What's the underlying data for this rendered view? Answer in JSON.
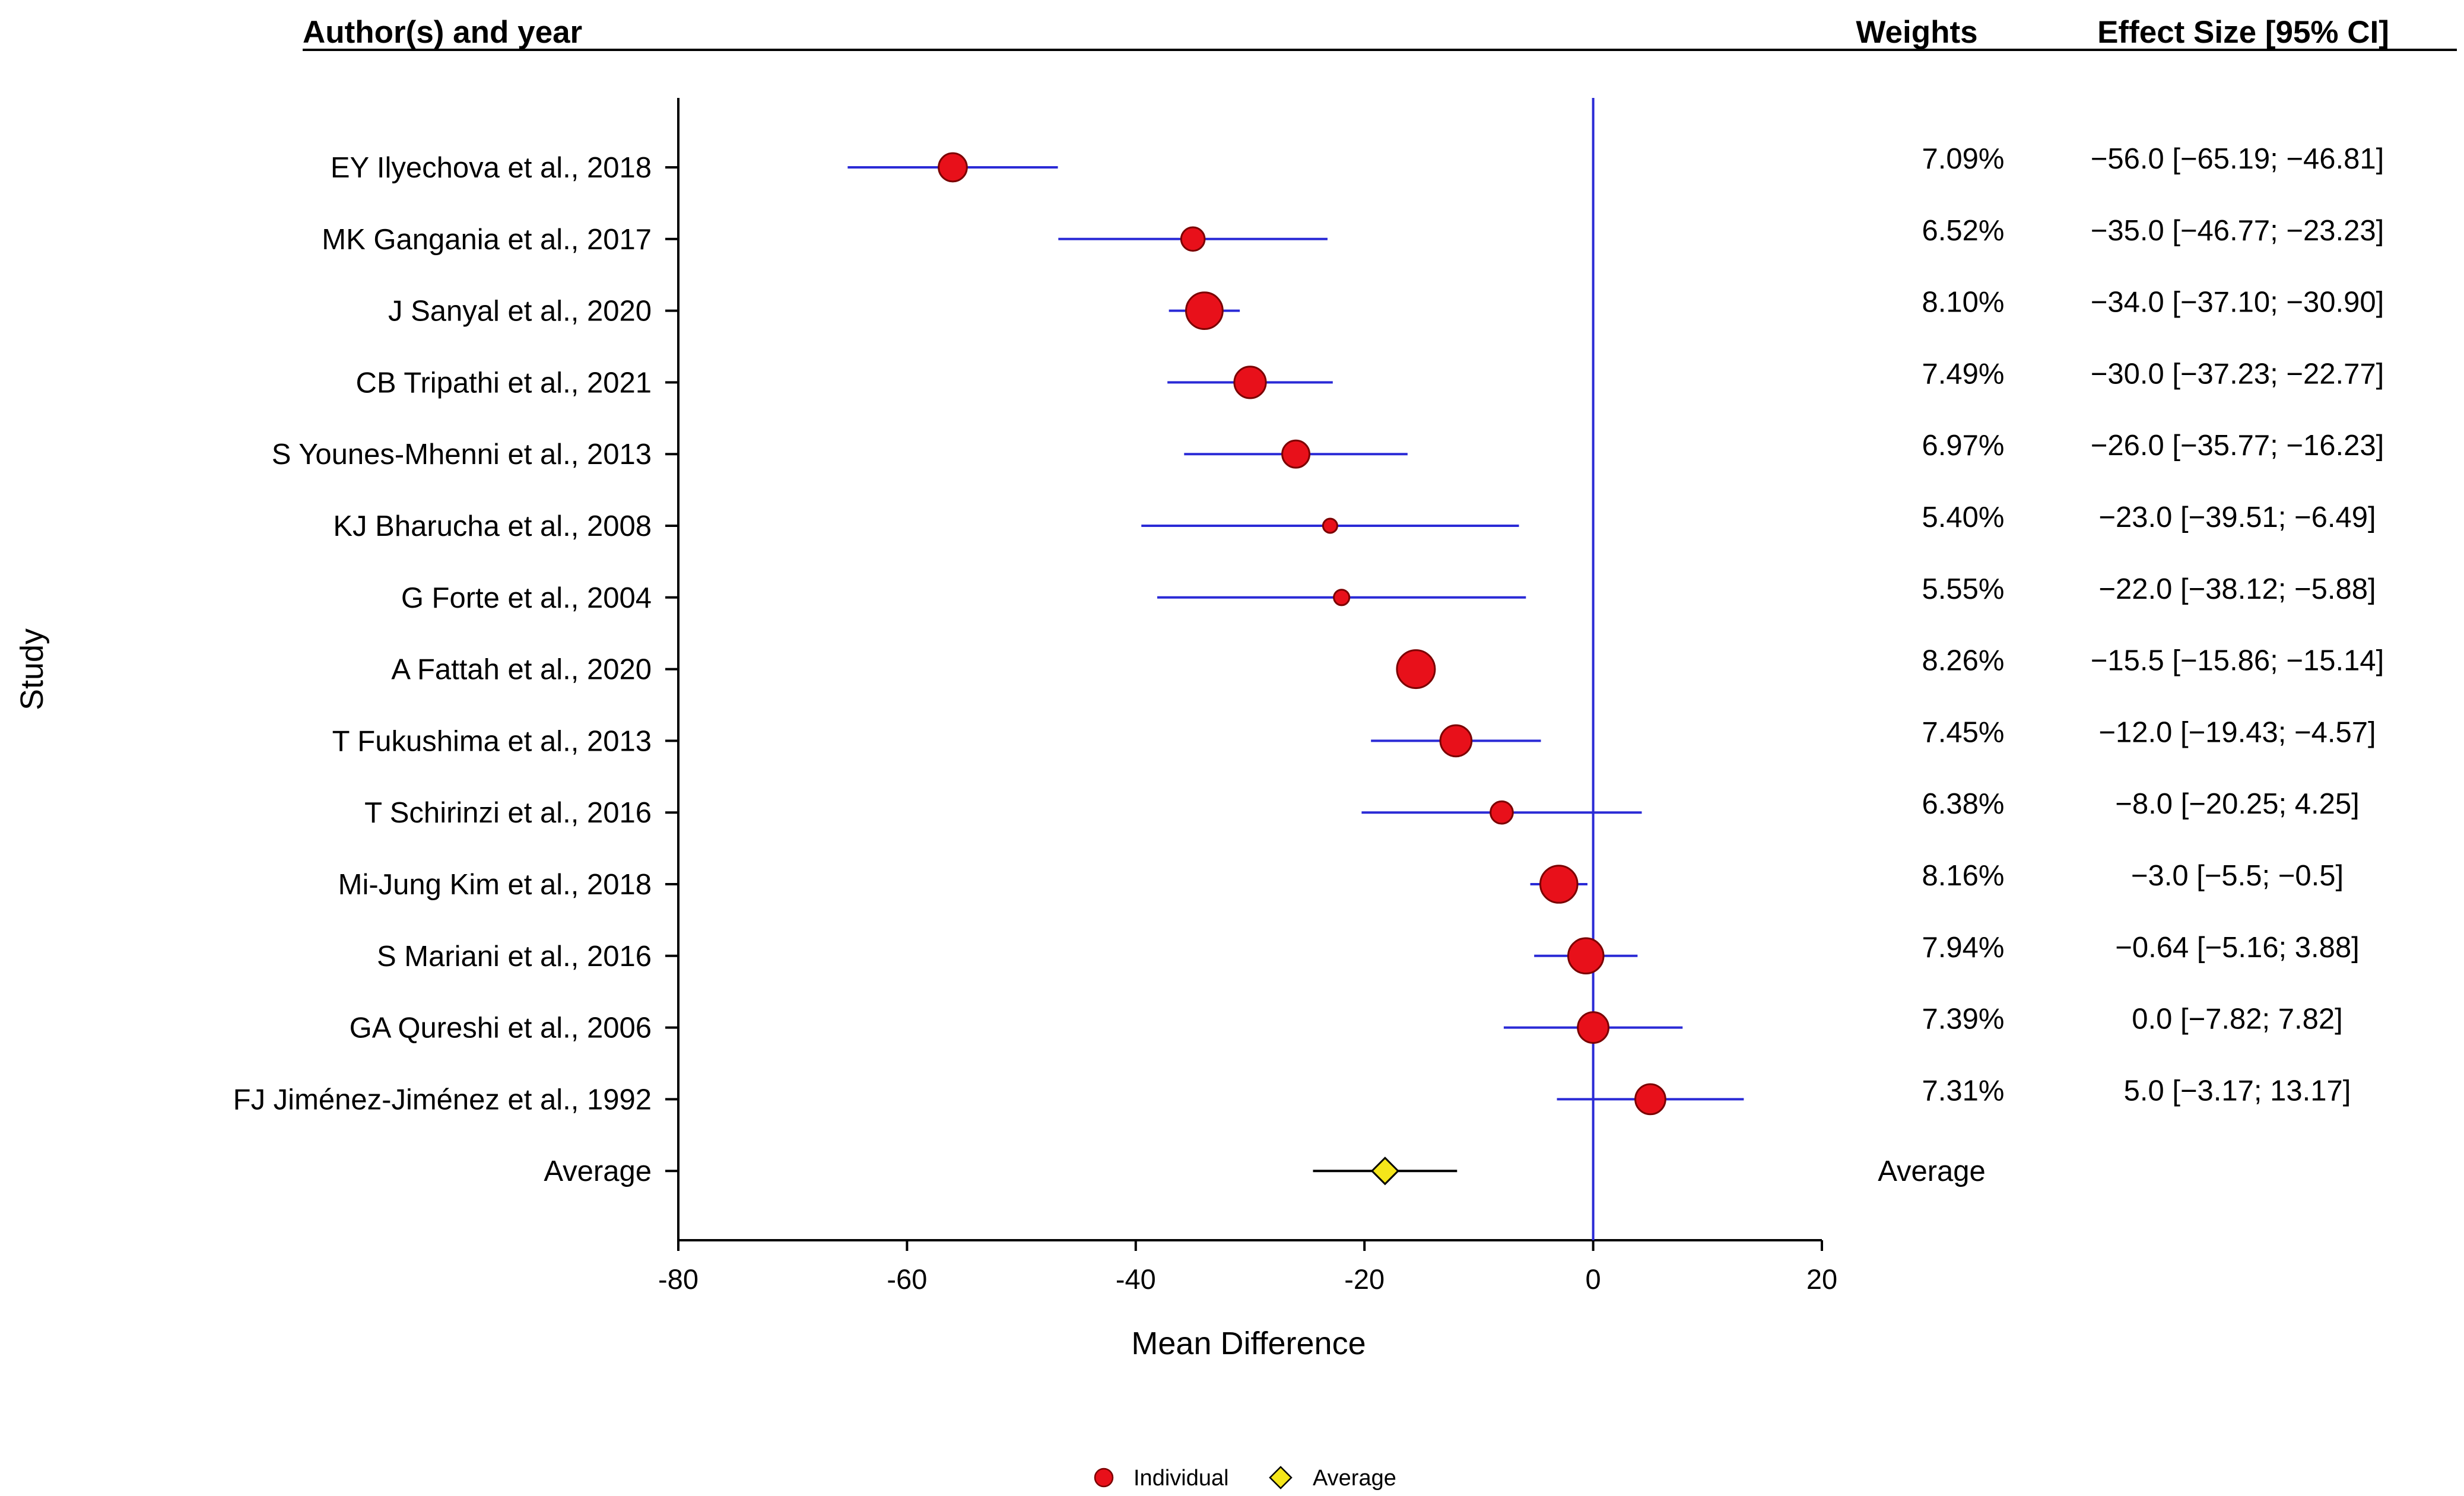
{
  "chart_data": {
    "type": "forest",
    "headers": {
      "author": "Author(s) and year",
      "weights": "Weights",
      "effect": "Effect Size [95% CI]"
    },
    "studies": [
      {
        "label": "EY Ilyechova et al., 2018",
        "md": -56.0,
        "lo": -65.19,
        "hi": -46.81,
        "weight": "7.09%",
        "ci_text": "−56.0 [−65.19; −46.81]",
        "w": 7.09
      },
      {
        "label": "MK Gangania et al., 2017",
        "md": -35.0,
        "lo": -46.77,
        "hi": -23.23,
        "weight": "6.52%",
        "ci_text": "−35.0 [−46.77; −23.23]",
        "w": 6.52
      },
      {
        "label": "J Sanyal et al., 2020",
        "md": -34.0,
        "lo": -37.1,
        "hi": -30.9,
        "weight": "8.10%",
        "ci_text": "−34.0 [−37.10; −30.90]",
        "w": 8.1
      },
      {
        "label": "CB Tripathi et al., 2021",
        "md": -30.0,
        "lo": -37.23,
        "hi": -22.77,
        "weight": "7.49%",
        "ci_text": "−30.0 [−37.23; −22.77]",
        "w": 7.49
      },
      {
        "label": "S Younes-Mhenni et al., 2013",
        "md": -26.0,
        "lo": -35.77,
        "hi": -16.23,
        "weight": "6.97%",
        "ci_text": "−26.0 [−35.77; −16.23]",
        "w": 6.97
      },
      {
        "label": "KJ Bharucha et al., 2008",
        "md": -23.0,
        "lo": -39.51,
        "hi": -6.49,
        "weight": "5.40%",
        "ci_text": "−23.0 [−39.51; −6.49]",
        "w": 5.4
      },
      {
        "label": "G Forte et al., 2004",
        "md": -22.0,
        "lo": -38.12,
        "hi": -5.88,
        "weight": "5.55%",
        "ci_text": "−22.0 [−38.12; −5.88]",
        "w": 5.55
      },
      {
        "label": "A Fattah et al., 2020",
        "md": -15.5,
        "lo": -15.86,
        "hi": -15.14,
        "weight": "8.26%",
        "ci_text": "−15.5 [−15.86; −15.14]",
        "w": 8.26
      },
      {
        "label": "T Fukushima et al., 2013",
        "md": -12.0,
        "lo": -19.43,
        "hi": -4.57,
        "weight": "7.45%",
        "ci_text": "−12.0 [−19.43; −4.57]",
        "w": 7.45
      },
      {
        "label": "T Schirinzi et al., 2016",
        "md": -8.0,
        "lo": -20.25,
        "hi": 4.25,
        "weight": "6.38%",
        "ci_text": "−8.0 [−20.25; 4.25]",
        "w": 6.38
      },
      {
        "label": "Mi-Jung Kim et al., 2018",
        "md": -3.0,
        "lo": -5.5,
        "hi": -0.5,
        "weight": "8.16%",
        "ci_text": "−3.0 [−5.5; −0.5]",
        "w": 8.16
      },
      {
        "label": "S Mariani et al., 2016",
        "md": -0.64,
        "lo": -5.16,
        "hi": 3.88,
        "weight": "7.94%",
        "ci_text": "−0.64 [−5.16; 3.88]",
        "w": 7.94
      },
      {
        "label": "GA Qureshi et al., 2006",
        "md": 0.0,
        "lo": -7.82,
        "hi": 7.82,
        "weight": "7.39%",
        "ci_text": "0.0 [−7.82; 7.82]",
        "w": 7.39
      },
      {
        "label": "FJ Jiménez-Jiménez et al., 1992",
        "md": 5.0,
        "lo": -3.17,
        "hi": 13.17,
        "weight": "7.31%",
        "ci_text": "5.0 [−3.17; 13.17]",
        "w": 7.31
      }
    ],
    "average": {
      "label": "Average",
      "weight_label": "Average",
      "md": -18.2,
      "lo": -24.5,
      "hi": -11.9
    },
    "xlabel": "Mean Difference",
    "ylabel": "Study",
    "xlim": [
      -80,
      20
    ],
    "xticks": [
      -80,
      -60,
      -40,
      -20,
      0,
      20
    ],
    "legend": [
      {
        "label": "Individual",
        "marker": "circle"
      },
      {
        "label": "Average",
        "marker": "diamond"
      }
    ],
    "colors": {
      "ci_line": "#2a2ad6",
      "ref_line": "#2a2ad6",
      "point": "#e8101a",
      "average": "#f5e61a",
      "average_line": "#000000"
    }
  }
}
